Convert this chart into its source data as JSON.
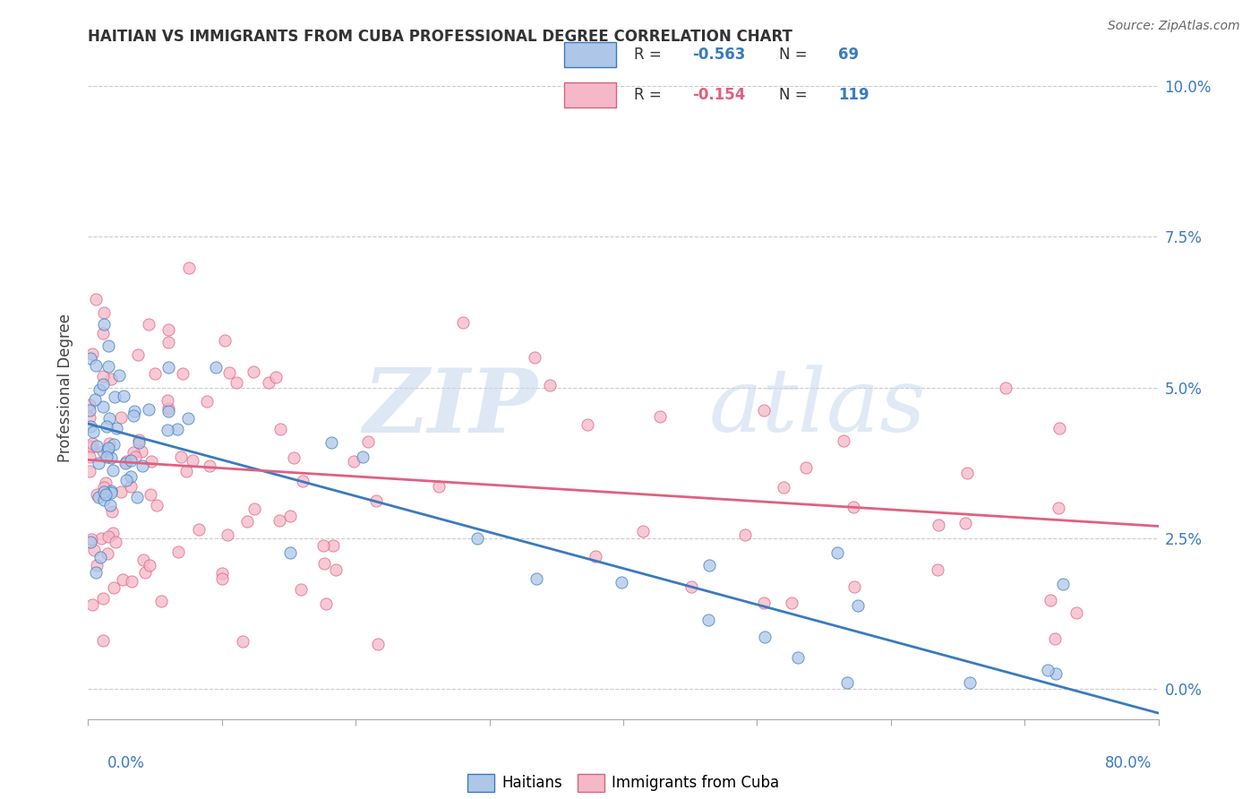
{
  "title": "HAITIAN VS IMMIGRANTS FROM CUBA PROFESSIONAL DEGREE CORRELATION CHART",
  "source": "Source: ZipAtlas.com",
  "ylabel_label": "Professional Degree",
  "legend_label1": "Haitians",
  "legend_label2": "Immigrants from Cuba",
  "R1": "-0.563",
  "N1": "69",
  "R2": "-0.154",
  "N2": "119",
  "color_blue": "#aec6e8",
  "color_pink": "#f4b8c8",
  "line_blue": "#3a7abf",
  "line_pink": "#e06080",
  "watermark_zip": "ZIP",
  "watermark_atlas": "atlas",
  "x_min": 0.0,
  "x_max": 0.8,
  "y_min": -0.005,
  "y_max": 0.105,
  "blue_line_x0": 0.0,
  "blue_line_y0": 0.044,
  "blue_line_x1": 0.8,
  "blue_line_y1": -0.004,
  "pink_line_x0": 0.0,
  "pink_line_y0": 0.038,
  "pink_line_x1": 0.8,
  "pink_line_y1": 0.027,
  "ytick_vals": [
    0.0,
    0.025,
    0.05,
    0.075,
    0.1
  ],
  "ytick_labels": [
    "0.0%",
    "2.5%",
    "5.0%",
    "7.5%",
    "10.0%"
  ]
}
